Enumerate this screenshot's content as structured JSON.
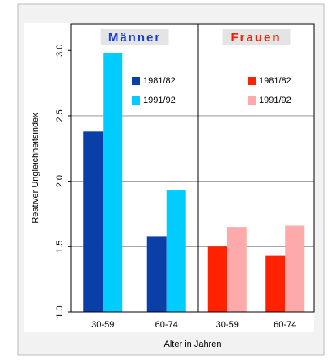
{
  "chart_data": [
    {
      "type": "bar",
      "title": "Männer",
      "title_color": "#1a3fd0",
      "categories": [
        "30-59",
        "60-74"
      ],
      "series": [
        {
          "name": "1981/82",
          "color": "#0a3fa8",
          "values": [
            2.38,
            1.58
          ]
        },
        {
          "name": "1991/92",
          "color": "#00ccff",
          "values": [
            2.98,
            1.93
          ]
        }
      ],
      "ylim": [
        1.0,
        3.2
      ],
      "yticks": [
        {
          "value": 1,
          "label": "1.0"
        },
        1.5,
        {
          "value": 2,
          "label": "2.0"
        },
        2.5,
        {
          "value": 3,
          "label": "3.0"
        }
      ],
      "ylabel": "Reativer Ungleichheitsindex",
      "xlabel": "Alter in Jahren",
      "grid": true,
      "legend": "upper right"
    },
    {
      "type": "bar",
      "title": "Frauen",
      "title_color": "#ee2200",
      "categories": [
        "30-59",
        "60-74"
      ],
      "series": [
        {
          "name": "1981/82",
          "color": "#ff2200",
          "values": [
            1.5,
            1.43
          ]
        },
        {
          "name": "1991/92",
          "color": "#ffaaaa",
          "values": [
            1.65,
            1.66
          ]
        }
      ],
      "ylim": [
        1.0,
        3.2
      ],
      "yticks": [
        1,
        1.5,
        2,
        2.5,
        3
      ],
      "grid": true,
      "legend": "upper right"
    }
  ]
}
